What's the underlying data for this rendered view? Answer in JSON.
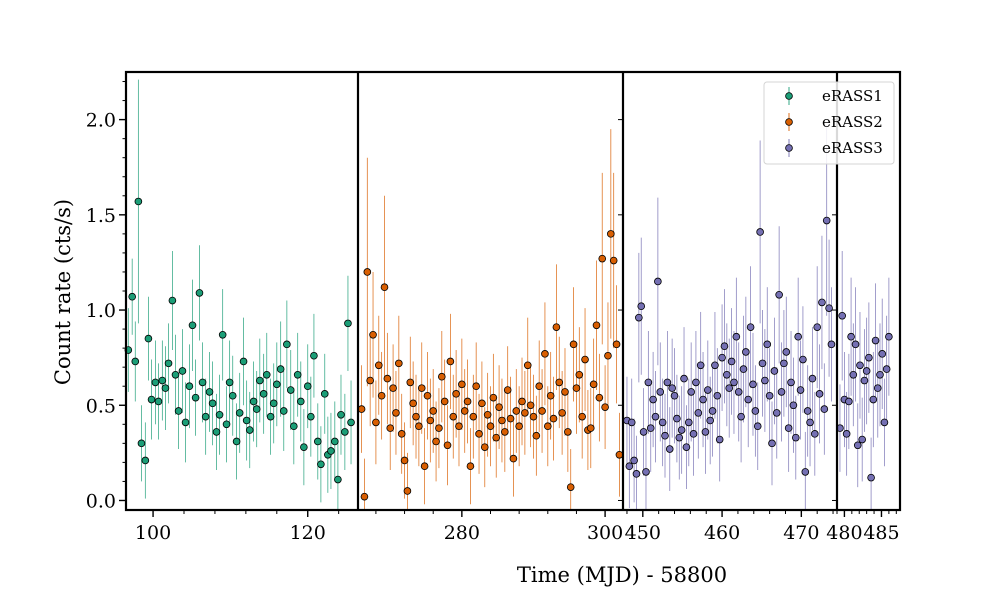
{
  "chart_data": {
    "type": "scatter",
    "ylabel": "Count rate (cts/s)",
    "xlabel": "Time (MJD) - 58800",
    "ylim": [
      -0.05,
      2.25
    ],
    "yticks": [
      0.0,
      0.5,
      1.0,
      1.5,
      2.0
    ],
    "ytick_labels": [
      "0.0",
      "0.5",
      "1.0",
      "1.5",
      "2.0"
    ],
    "error_bars": true,
    "legend_placement": "top-right",
    "panels": [
      {
        "xlim": [
          96.5,
          126.5
        ],
        "xticks": [
          100,
          120
        ],
        "xtick_labels": [
          "100",
          "120"
        ]
      },
      {
        "xlim": [
          265.5,
          302.5
        ],
        "xticks": [
          280,
          300
        ],
        "xtick_labels": [
          "280",
          "300"
        ]
      },
      {
        "xlim": [
          447.5,
          474.5
        ],
        "xticks": [
          450,
          460,
          470
        ],
        "xtick_labels": [
          "450",
          "460",
          "470"
        ]
      },
      {
        "xlim": [
          479,
          487.5
        ],
        "xticks": [
          480,
          485
        ],
        "xtick_labels": [
          "480",
          "485"
        ]
      }
    ],
    "series": [
      {
        "name": "eRASS1",
        "color": "#1b9e77",
        "panels": [
          0
        ],
        "x": [
          96.8,
          97.3,
          97.7,
          98.1,
          98.5,
          99.0,
          99.4,
          99.8,
          100.3,
          100.7,
          101.2,
          101.6,
          102.0,
          102.5,
          102.9,
          103.3,
          103.8,
          104.2,
          104.7,
          105.1,
          105.5,
          106.0,
          106.4,
          106.8,
          107.3,
          107.7,
          108.2,
          108.6,
          109.0,
          109.5,
          109.9,
          110.3,
          110.8,
          111.2,
          111.7,
          112.1,
          112.5,
          113.0,
          113.4,
          113.8,
          114.3,
          114.7,
          115.2,
          115.6,
          116.0,
          116.5,
          116.9,
          117.3,
          117.8,
          118.2,
          118.7,
          119.1,
          119.5,
          120.0,
          120.4,
          120.8,
          121.3,
          121.7,
          122.2,
          122.6,
          123.0,
          123.5,
          123.9,
          124.3,
          124.8,
          125.2,
          125.6
        ],
        "y": [
          0.79,
          1.07,
          0.73,
          1.57,
          0.3,
          0.21,
          0.85,
          0.53,
          0.62,
          0.52,
          0.63,
          0.59,
          0.72,
          1.05,
          0.66,
          0.47,
          0.68,
          0.41,
          0.6,
          0.92,
          0.54,
          1.09,
          0.62,
          0.44,
          0.57,
          0.51,
          0.36,
          0.45,
          0.87,
          0.4,
          0.62,
          0.55,
          0.31,
          0.46,
          0.73,
          0.42,
          0.37,
          0.52,
          0.48,
          0.63,
          0.56,
          0.66,
          0.44,
          0.51,
          0.61,
          0.69,
          0.47,
          0.82,
          0.58,
          0.39,
          0.66,
          0.52,
          0.28,
          0.6,
          0.44,
          0.76,
          0.31,
          0.19,
          0.56,
          0.24,
          0.26,
          0.31,
          0.11,
          0.45,
          0.36,
          0.93,
          0.41
        ],
        "err": [
          0.22,
          0.2,
          0.21,
          0.64,
          0.2,
          0.2,
          0.22,
          0.21,
          0.22,
          0.2,
          0.21,
          0.22,
          0.21,
          0.26,
          0.21,
          0.2,
          0.22,
          0.21,
          0.22,
          0.24,
          0.2,
          0.25,
          0.21,
          0.2,
          0.21,
          0.22,
          0.2,
          0.21,
          0.24,
          0.2,
          0.22,
          0.21,
          0.2,
          0.21,
          0.23,
          0.21,
          0.2,
          0.21,
          0.2,
          0.22,
          0.21,
          0.22,
          0.2,
          0.21,
          0.22,
          0.25,
          0.21,
          0.23,
          0.21,
          0.2,
          0.22,
          0.21,
          0.2,
          0.22,
          0.21,
          0.22,
          0.2,
          0.2,
          0.21,
          0.2,
          0.2,
          0.21,
          0.2,
          0.21,
          0.2,
          0.25,
          0.22
        ]
      },
      {
        "name": "eRASS2",
        "color": "#d95f02",
        "panels": [
          1
        ],
        "x": [
          266.0,
          266.4,
          266.8,
          267.2,
          267.6,
          268.0,
          268.4,
          268.8,
          269.2,
          269.6,
          270.0,
          270.4,
          270.8,
          271.2,
          271.6,
          272.0,
          272.4,
          272.8,
          273.2,
          273.6,
          274.0,
          274.4,
          274.8,
          275.2,
          275.6,
          276.0,
          276.4,
          276.8,
          277.2,
          277.6,
          278.0,
          278.4,
          278.8,
          279.2,
          279.6,
          280.0,
          280.4,
          280.8,
          281.2,
          281.6,
          282.0,
          282.4,
          282.8,
          283.2,
          283.6,
          284.0,
          284.4,
          284.8,
          285.2,
          285.6,
          286.0,
          286.4,
          286.8,
          287.2,
          287.6,
          288.0,
          288.4,
          288.8,
          289.2,
          289.6,
          290.0,
          290.4,
          290.8,
          291.2,
          291.6,
          292.0,
          292.4,
          292.8,
          293.2,
          293.6,
          294.0,
          294.4,
          294.8,
          295.2,
          295.6,
          296.0,
          296.4,
          296.8,
          297.2,
          297.6,
          298.0,
          298.4,
          298.8,
          299.2,
          299.6,
          300.0,
          300.4,
          300.8,
          301.2,
          301.6,
          302.0
        ],
        "y": [
          0.48,
          0.02,
          1.2,
          0.63,
          0.87,
          0.41,
          0.71,
          0.55,
          1.12,
          0.64,
          0.38,
          0.59,
          0.46,
          0.72,
          0.35,
          0.21,
          0.05,
          0.62,
          0.51,
          0.44,
          0.39,
          0.59,
          0.18,
          0.55,
          0.42,
          0.47,
          0.31,
          0.38,
          0.65,
          0.52,
          0.29,
          0.73,
          0.44,
          0.56,
          0.39,
          0.61,
          0.47,
          0.52,
          0.18,
          0.44,
          0.6,
          0.35,
          0.51,
          0.28,
          0.45,
          0.39,
          0.54,
          0.33,
          0.49,
          0.42,
          0.36,
          0.58,
          0.43,
          0.22,
          0.47,
          0.39,
          0.52,
          0.46,
          0.71,
          0.5,
          0.44,
          0.34,
          0.6,
          0.47,
          0.77,
          0.39,
          0.55,
          0.43,
          0.91,
          0.62,
          0.46,
          0.57,
          0.36,
          0.07,
          0.82,
          0.59,
          0.66,
          0.44,
          0.74,
          0.37,
          0.38,
          0.61,
          0.92,
          0.54,
          1.27,
          0.49,
          0.76,
          1.4,
          1.26,
          0.82,
          0.24
        ],
        "err": [
          0.23,
          0.2,
          0.6,
          0.24,
          0.33,
          0.22,
          0.26,
          0.23,
          0.48,
          0.24,
          0.22,
          0.23,
          0.22,
          0.25,
          0.21,
          0.2,
          0.2,
          0.24,
          0.22,
          0.22,
          0.21,
          0.24,
          0.2,
          0.23,
          0.22,
          0.22,
          0.21,
          0.21,
          0.24,
          0.22,
          0.21,
          0.25,
          0.22,
          0.23,
          0.21,
          0.24,
          0.22,
          0.22,
          0.2,
          0.22,
          0.23,
          0.21,
          0.22,
          0.21,
          0.22,
          0.21,
          0.23,
          0.21,
          0.22,
          0.22,
          0.21,
          0.23,
          0.22,
          0.2,
          0.22,
          0.21,
          0.23,
          0.22,
          0.25,
          0.22,
          0.22,
          0.21,
          0.24,
          0.22,
          0.27,
          0.21,
          0.23,
          0.22,
          0.33,
          0.24,
          0.22,
          0.23,
          0.21,
          0.2,
          0.3,
          0.24,
          0.25,
          0.22,
          0.27,
          0.21,
          0.21,
          0.24,
          0.34,
          0.23,
          0.45,
          0.22,
          0.28,
          0.55,
          0.46,
          0.31,
          0.22
        ]
      },
      {
        "name": "eRASS3",
        "color": "#7570b3",
        "panels": [
          2,
          3
        ],
        "x": [
          448.0,
          448.3,
          448.6,
          448.9,
          449.2,
          449.5,
          449.8,
          450.1,
          450.4,
          450.7,
          451.0,
          451.3,
          451.6,
          451.9,
          452.2,
          452.5,
          452.8,
          453.1,
          453.4,
          453.7,
          454.0,
          454.3,
          454.6,
          454.9,
          455.2,
          455.5,
          455.8,
          456.1,
          456.4,
          456.7,
          457.0,
          457.3,
          457.6,
          457.9,
          458.2,
          458.5,
          458.8,
          459.1,
          459.4,
          459.7,
          460.0,
          460.3,
          460.6,
          460.9,
          461.2,
          461.5,
          461.8,
          462.1,
          462.4,
          462.7,
          463.0,
          463.3,
          463.6,
          463.9,
          464.2,
          464.5,
          464.8,
          465.1,
          465.4,
          465.7,
          466.0,
          466.3,
          466.6,
          466.9,
          467.2,
          467.5,
          467.8,
          468.1,
          468.4,
          468.7,
          469.0,
          469.3,
          469.6,
          469.9,
          470.2,
          470.5,
          470.8,
          471.1,
          471.4,
          471.7,
          472.0,
          472.3,
          472.6,
          472.9,
          473.2,
          473.5,
          473.8,
          479.4,
          479.7,
          480.0,
          480.3,
          480.6,
          480.9,
          481.2,
          481.5,
          481.8,
          482.1,
          482.4,
          482.7,
          483.0,
          483.3,
          483.6,
          483.9,
          484.2,
          484.5,
          484.8,
          485.1,
          485.4,
          485.7,
          486.0
        ],
        "y": [
          0.42,
          0.18,
          0.41,
          0.21,
          0.14,
          0.96,
          1.02,
          0.36,
          0.15,
          0.62,
          0.38,
          0.53,
          0.44,
          1.15,
          0.57,
          0.41,
          0.34,
          0.62,
          0.27,
          0.59,
          0.55,
          0.43,
          0.33,
          0.37,
          0.64,
          0.28,
          0.41,
          0.57,
          0.35,
          0.62,
          0.46,
          0.71,
          0.53,
          0.36,
          0.58,
          0.42,
          0.47,
          0.71,
          0.55,
          0.32,
          0.75,
          0.81,
          0.66,
          0.59,
          0.73,
          0.62,
          0.86,
          0.57,
          0.44,
          0.69,
          0.78,
          0.53,
          0.91,
          0.61,
          0.47,
          0.39,
          1.41,
          0.72,
          0.63,
          0.82,
          0.55,
          0.3,
          0.68,
          0.46,
          1.08,
          0.57,
          0.72,
          0.78,
          0.38,
          0.62,
          0.5,
          0.33,
          0.86,
          0.58,
          0.74,
          0.15,
          0.47,
          0.41,
          0.64,
          0.35,
          0.91,
          0.56,
          1.04,
          0.48,
          1.47,
          1.01,
          0.82,
          0.38,
          0.97,
          0.53,
          0.35,
          0.52,
          0.86,
          0.66,
          0.82,
          0.29,
          0.71,
          0.32,
          0.63,
          0.68,
          0.75,
          0.12,
          0.53,
          0.84,
          0.59,
          0.66,
          0.77,
          0.41,
          0.69,
          0.86
        ],
        "err": [
          0.23,
          0.22,
          0.23,
          0.22,
          0.2,
          0.34,
          0.36,
          0.23,
          0.21,
          0.27,
          0.23,
          0.25,
          0.24,
          0.44,
          0.26,
          0.23,
          0.22,
          0.27,
          0.22,
          0.26,
          0.25,
          0.23,
          0.22,
          0.23,
          0.27,
          0.22,
          0.23,
          0.26,
          0.22,
          0.27,
          0.24,
          0.28,
          0.25,
          0.22,
          0.26,
          0.23,
          0.24,
          0.28,
          0.25,
          0.22,
          0.28,
          0.3,
          0.27,
          0.26,
          0.28,
          0.27,
          0.31,
          0.26,
          0.24,
          0.28,
          0.29,
          0.25,
          0.32,
          0.27,
          0.24,
          0.23,
          0.48,
          0.28,
          0.27,
          0.3,
          0.25,
          0.22,
          0.28,
          0.24,
          0.36,
          0.26,
          0.28,
          0.29,
          0.23,
          0.27,
          0.25,
          0.22,
          0.31,
          0.26,
          0.28,
          0.21,
          0.24,
          0.23,
          0.27,
          0.22,
          0.32,
          0.26,
          0.35,
          0.24,
          0.5,
          0.36,
          0.3,
          0.23,
          0.34,
          0.25,
          0.22,
          0.25,
          0.31,
          0.27,
          0.3,
          0.22,
          0.28,
          0.22,
          0.27,
          0.28,
          0.29,
          0.21,
          0.25,
          0.3,
          0.26,
          0.27,
          0.29,
          0.23,
          0.28,
          0.31
        ]
      }
    ]
  }
}
